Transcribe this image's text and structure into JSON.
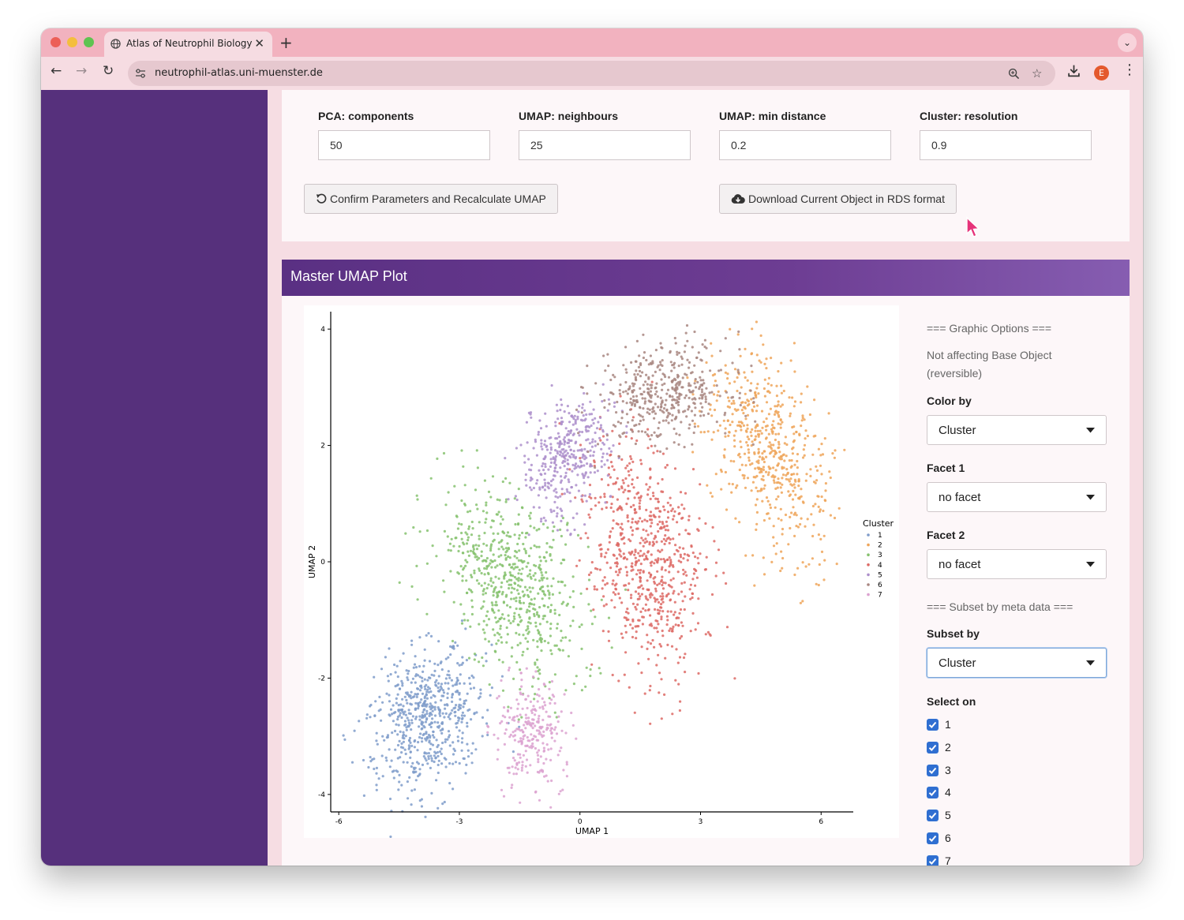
{
  "browser": {
    "tab_title": "Atlas of Neutrophil Biology",
    "url": "neutrophil-atlas.uni-muenster.de",
    "profile_initial": "E"
  },
  "params": {
    "pca_label": "PCA: components",
    "pca_value": "50",
    "neighbours_label": "UMAP: neighbours",
    "neighbours_value": "25",
    "mindist_label": "UMAP: min distance",
    "mindist_value": "0.2",
    "resolution_label": "Cluster: resolution",
    "resolution_value": "0.9",
    "confirm_button": "Confirm Parameters and Recalculate UMAP",
    "download_button": "Download Current Object in RDS format"
  },
  "plot_panel": {
    "title": "Master UMAP Plot"
  },
  "options": {
    "graphic_header": "=== Graphic Options ===",
    "graphic_note_1": "Not affecting Base Object",
    "graphic_note_2": "(reversible)",
    "color_by_label": "Color by",
    "color_by_value": "Cluster",
    "facet1_label": "Facet 1",
    "facet1_value": "no facet",
    "facet2_label": "Facet 2",
    "facet2_value": "no facet",
    "subset_header": "=== Subset by meta data ===",
    "subset_by_label": "Subset by",
    "subset_by_value": "Cluster",
    "select_on_label": "Select on",
    "select_items": [
      "1",
      "2",
      "3",
      "4",
      "5",
      "6",
      "7"
    ]
  },
  "chart_data": {
    "type": "scatter",
    "xlabel": "UMAP 1",
    "ylabel": "UMAP 2",
    "xlim": [
      -6.2,
      6.8
    ],
    "ylim": [
      -4.3,
      4.3
    ],
    "xticks": [
      -6,
      -3,
      0,
      3,
      6
    ],
    "yticks": [
      -4,
      -2,
      0,
      2,
      4
    ],
    "legend_title": "Cluster",
    "legend_position": "right",
    "series": [
      {
        "name": "1",
        "color": "#7f9cca",
        "centroid": [
          -3.8,
          -2.7
        ],
        "spread": [
          1.0,
          0.75
        ],
        "tilt": 0.45,
        "n": 620
      },
      {
        "name": "2",
        "color": "#efa559",
        "centroid": [
          4.7,
          1.9
        ],
        "spread": [
          0.8,
          1.3
        ],
        "tilt": 0.6,
        "n": 560
      },
      {
        "name": "3",
        "color": "#86c26e",
        "centroid": [
          -1.7,
          -0.4
        ],
        "spread": [
          0.85,
          1.4
        ],
        "tilt": 0.9,
        "n": 650
      },
      {
        "name": "4",
        "color": "#dd6a65",
        "centroid": [
          1.6,
          0.1
        ],
        "spread": [
          0.9,
          1.4
        ],
        "tilt": 0.3,
        "n": 700
      },
      {
        "name": "5",
        "color": "#ad8fcb",
        "centroid": [
          -0.3,
          1.8
        ],
        "spread": [
          0.8,
          0.6
        ],
        "tilt": 0.7,
        "n": 380
      },
      {
        "name": "6",
        "color": "#a88680",
        "centroid": [
          2.1,
          2.9
        ],
        "spread": [
          1.1,
          0.55
        ],
        "tilt": 0.1,
        "n": 430
      },
      {
        "name": "7",
        "color": "#dca2d0",
        "centroid": [
          -1.2,
          -3.0
        ],
        "spread": [
          0.55,
          0.65
        ],
        "tilt": 0.5,
        "n": 260
      }
    ]
  }
}
